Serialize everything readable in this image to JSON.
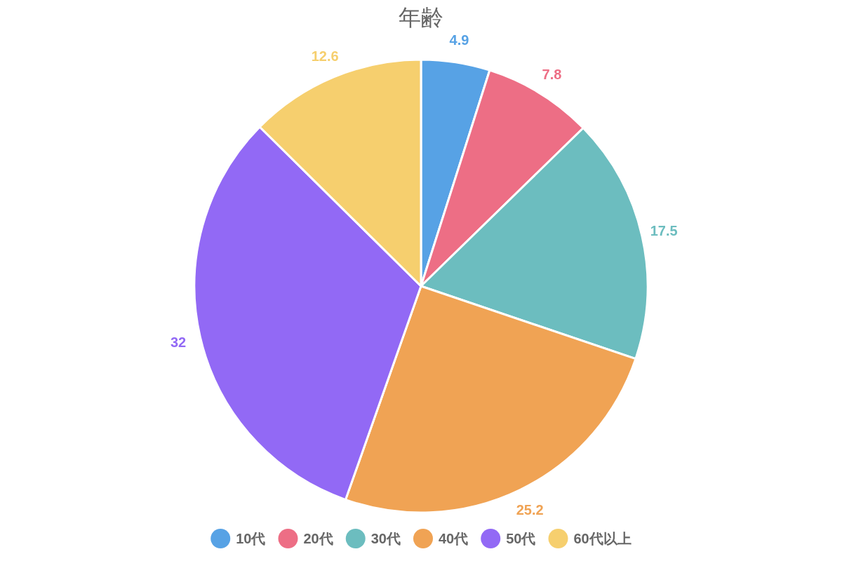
{
  "chart_data": {
    "type": "pie",
    "title": "年齢",
    "categories": [
      "10代",
      "20代",
      "30代",
      "40代",
      "50代",
      "60代以上"
    ],
    "values": [
      4.9,
      7.8,
      17.5,
      25.2,
      32,
      12.6
    ],
    "colors": [
      "#57a2e5",
      "#ed6e85",
      "#6cbdbf",
      "#f0a354",
      "#9269f5",
      "#f6cf6e"
    ],
    "data_labels": true,
    "legend": "bottom"
  }
}
